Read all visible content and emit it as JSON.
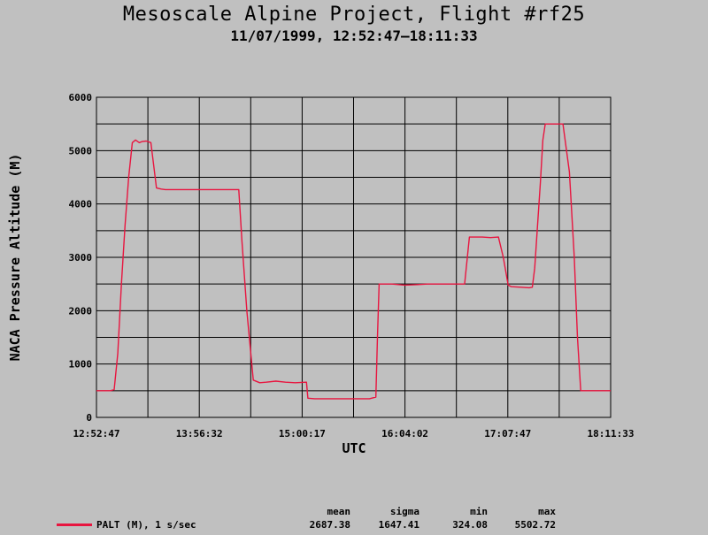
{
  "title": "Mesoscale Alpine Project, Flight #rf25",
  "subtitle": "11/07/1999, 12:52:47–18:11:33",
  "colors": {
    "background": "#c0c0c0",
    "series": "#e8153f",
    "grid": "#000000"
  },
  "chart_data": {
    "type": "line",
    "title": "Mesoscale Alpine Project, Flight #rf25",
    "subtitle": "11/07/1999, 12:52:47–18:11:33",
    "xlabel": "UTC",
    "ylabel": "NACA Pressure Altitude (M)",
    "xlim": [
      "12:52:47",
      "18:11:33"
    ],
    "ylim": [
      0,
      6000
    ],
    "grid": true,
    "x_ticks": [
      "12:52:47",
      "13:56:32",
      "15:00:17",
      "16:04:02",
      "17:07:47",
      "18:11:33"
    ],
    "y_ticks": [
      "0",
      "1000",
      "2000",
      "3000",
      "4000",
      "5000",
      "6000"
    ],
    "series": [
      {
        "name": "PALT (M), 1 s/sec",
        "color": "#e8153f",
        "x": [
          "12:52:47",
          "13:01:30",
          "13:03:45",
          "13:06:00",
          "13:08:15",
          "13:10:30",
          "13:12:45",
          "13:15:00",
          "13:17:00",
          "13:19:20",
          "13:21:00",
          "13:23:40",
          "13:26:30",
          "13:30:00",
          "13:33:00",
          "13:35:30",
          "13:38:00",
          "13:45:00",
          "13:52:00",
          "13:58:00",
          "14:06:00",
          "14:14:00",
          "14:21:00",
          "14:23:00",
          "14:26:00",
          "14:30:00",
          "14:34:00",
          "14:38:00",
          "14:44:00",
          "14:50:00",
          "14:56:00",
          "15:03:00",
          "15:03:50",
          "15:08:00",
          "15:14:00",
          "15:20:00",
          "15:28:00",
          "15:36:00",
          "15:42:00",
          "15:46:00",
          "15:47:00",
          "15:48:00",
          "15:56:00",
          "16:04:00",
          "16:12:00",
          "16:18:00",
          "16:24:00",
          "16:32:00",
          "16:41:00",
          "16:44:00",
          "16:47:00",
          "16:52:00",
          "16:57:00",
          "17:02:00",
          "17:05:00",
          "17:08:00",
          "17:10:00",
          "17:16:00",
          "17:21:00",
          "17:23:00",
          "17:24:30",
          "17:26:00",
          "17:28:00",
          "17:29:30",
          "17:31:00",
          "17:32:30",
          "17:34:00",
          "17:38:00",
          "17:42:00",
          "17:46:00",
          "17:49:00",
          "17:51:00",
          "17:53:00",
          "17:55:00",
          "17:57:00",
          "18:00:00",
          "18:05:00",
          "18:11:33"
        ],
        "y": [
          500,
          500,
          520,
          1200,
          2500,
          3600,
          4500,
          5150,
          5200,
          5150,
          5170,
          5180,
          5150,
          4300,
          4280,
          4270,
          4270,
          4270,
          4270,
          4270,
          4270,
          4270,
          4270,
          3300,
          2000,
          700,
          650,
          660,
          680,
          660,
          650,
          660,
          360,
          350,
          350,
          350,
          350,
          350,
          350,
          380,
          1500,
          2500,
          2500,
          2480,
          2490,
          2500,
          2500,
          2500,
          2500,
          3380,
          3380,
          3380,
          3370,
          3380,
          3000,
          2480,
          2450,
          2440,
          2430,
          2440,
          2800,
          3500,
          4400,
          5200,
          5500,
          5500,
          5500,
          5500,
          5500,
          4600,
          3000,
          1500,
          500,
          500,
          500,
          500,
          500,
          500
        ]
      }
    ],
    "stats": {
      "headers": [
        "mean",
        "sigma",
        "min",
        "max"
      ],
      "values": [
        "2687.38",
        "1647.41",
        "324.08",
        "5502.72"
      ]
    }
  },
  "legend": {
    "label": "PALT (M), 1 s/sec"
  }
}
